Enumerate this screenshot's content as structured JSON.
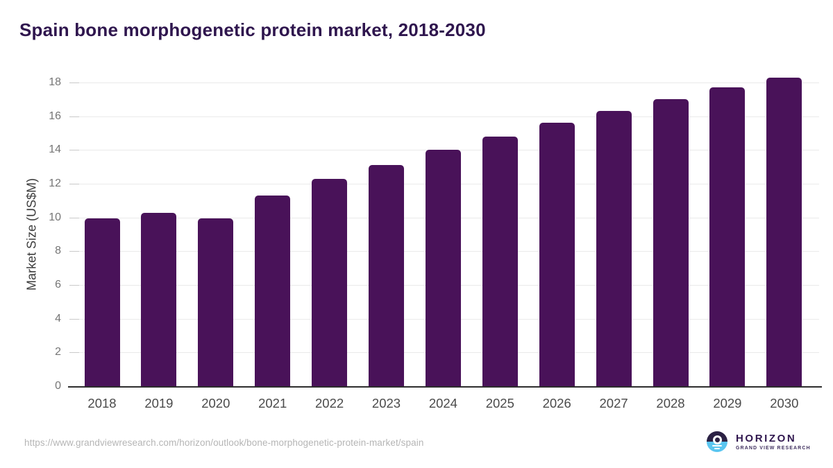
{
  "title": "Spain bone morphogenetic protein market, 2018-2030",
  "chart_data": {
    "type": "bar",
    "categories": [
      "2018",
      "2019",
      "2020",
      "2021",
      "2022",
      "2023",
      "2024",
      "2025",
      "2026",
      "2027",
      "2028",
      "2029",
      "2030"
    ],
    "values": [
      9.95,
      10.27,
      9.95,
      11.3,
      12.3,
      13.1,
      14.0,
      14.8,
      15.6,
      16.3,
      17.0,
      17.7,
      18.3
    ],
    "title": "Spain bone morphogenetic protein market, 2018-2030",
    "xlabel": "",
    "ylabel": "Market Size (US$M)",
    "ylim": [
      0,
      18
    ],
    "yticks": [
      0,
      2,
      4,
      6,
      8,
      10,
      12,
      14,
      16,
      18
    ],
    "grid": true,
    "legend": false,
    "bar_color": "#491259"
  },
  "colors": {
    "title_text": "#2f164e",
    "bar": "#491259",
    "gridline": "#eaeaea",
    "axis_line": "#2d2d2d",
    "y_tick_text": "#757575",
    "x_tick_text": "#4a4a4a",
    "url_text": "#b5b5b5",
    "logo_dark": "#2b2144",
    "logo_blue": "#5bc6f0"
  },
  "footer": {
    "source_url": "https://www.grandviewresearch.com/horizon/outlook/bone-morphogenetic-protein-market/spain"
  },
  "logo": {
    "brand": "HORIZON",
    "subtitle": "GRAND VIEW RESEARCH"
  }
}
